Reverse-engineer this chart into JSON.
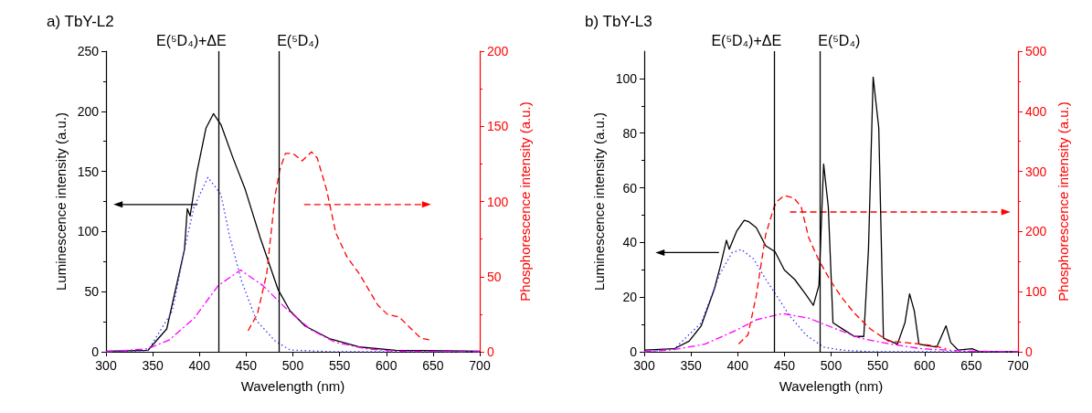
{
  "chart_data": [
    {
      "type": "line",
      "title": "a) TbY-L2",
      "xlabel": "Wavelength (nm)",
      "ylabel": "Luminescence intensity (a.u.)",
      "y2label": "Phosphorescence intensity (a.u.)",
      "xlim": [
        300,
        700
      ],
      "xticks": [
        300,
        350,
        400,
        450,
        500,
        550,
        600,
        650,
        700
      ],
      "ylim": [
        0,
        250
      ],
      "yticks": [
        0,
        50,
        100,
        150,
        200,
        250
      ],
      "y2lim": [
        0,
        200
      ],
      "y2ticks": [
        0,
        50,
        100,
        150,
        200
      ],
      "grid": false,
      "marker": "none",
      "ref_lines": [
        {
          "axis": "x",
          "value": 421,
          "label": "E(⁵D₄)+ΔE",
          "color": "#000000"
        },
        {
          "axis": "x",
          "value": 485,
          "label": "E(⁵D₄)",
          "color": "#000000"
        }
      ],
      "series": [
        {
          "color": "#000000",
          "line_style": "solid",
          "x": [
            300,
            345,
            365,
            384,
            387,
            390,
            397,
            407,
            415,
            423,
            436,
            449,
            465,
            484,
            497,
            513,
            539,
            571,
            610,
            700
          ],
          "values": [
            0.5,
            1.3,
            19,
            85,
            119,
            113,
            148,
            186,
            198,
            189,
            161,
            135,
            95,
            52,
            34,
            21.5,
            11,
            4,
            1.3,
            0.5
          ]
        },
        {
          "color": "#3333ff",
          "line_style": "dotted",
          "x": [
            300,
            345,
            371,
            384,
            394,
            409,
            423,
            432,
            445,
            461,
            481,
            497,
            545,
            700
          ],
          "values": [
            0,
            1,
            34,
            85,
            120,
            145,
            131,
            97,
            59,
            26,
            9,
            1.5,
            0,
            0
          ]
        },
        {
          "color": "#ff00ff",
          "line_style": "dashdot",
          "x": [
            300,
            345,
            368,
            394,
            420,
            444,
            468,
            494,
            520,
            545,
            578,
            610,
            700
          ],
          "values": [
            0,
            2.5,
            10,
            27.6,
            55,
            68,
            55,
            35,
            18,
            8,
            2.5,
            0.5,
            0
          ]
        },
        {
          "color": "#ff0000",
          "line_style": "dashed",
          "axis": "y2",
          "x": [
            452,
            462,
            472,
            481,
            486,
            492,
            500,
            510,
            520,
            526,
            536,
            546,
            558,
            571,
            591,
            601,
            614,
            627,
            637,
            646
          ],
          "values": [
            14,
            25,
            52,
            104,
            121,
            132,
            132,
            127,
            133,
            129,
            108,
            79,
            63,
            52,
            31,
            25,
            23,
            15,
            9,
            8
          ]
        }
      ]
    },
    {
      "type": "line",
      "title": "b) TbY-L3",
      "xlabel": "Wavelength (nm)",
      "ylabel": "Luminescence intensity (a.u.)",
      "y2label": "Phosphorescence intensity (a.u.)",
      "xlim": [
        300,
        700
      ],
      "xticks": [
        300,
        350,
        400,
        450,
        500,
        550,
        600,
        650,
        700
      ],
      "ylim": [
        0,
        110
      ],
      "yticks": [
        0,
        20,
        40,
        60,
        80,
        100
      ],
      "y2lim": [
        0,
        500
      ],
      "y2ticks": [
        0,
        100,
        200,
        300,
        400,
        500
      ],
      "grid": false,
      "marker": "none",
      "ref_lines": [
        {
          "axis": "x",
          "value": 439,
          "label": "E(⁵D₄)+ΔE",
          "color": "#000000"
        },
        {
          "axis": "x",
          "value": 488,
          "label": "E(⁵D₄)",
          "color": "#000000"
        }
      ],
      "series": [
        {
          "color": "#000000",
          "line_style": "solid",
          "x": [
            300,
            332,
            348,
            361,
            375,
            381,
            388,
            391,
            399,
            407,
            412,
            420,
            430,
            440,
            450,
            461,
            473,
            481,
            487,
            492,
            497,
            502,
            512,
            525,
            535,
            540,
            545,
            551,
            556,
            571,
            579,
            584,
            589,
            594,
            613,
            623,
            628,
            636,
            651,
            659,
            700
          ],
          "values": [
            0.6,
            1.1,
            3.9,
            9.5,
            22.9,
            30.7,
            40.8,
            37.5,
            44.2,
            48.1,
            47.6,
            45.4,
            38.8,
            36.6,
            29.9,
            26.5,
            20.9,
            17,
            24.3,
            68.7,
            53,
            10.6,
            8.4,
            5.6,
            5.6,
            37.5,
            100.5,
            82,
            5,
            2.8,
            10.6,
            21.2,
            15,
            2.8,
            1.7,
            9.5,
            3.4,
            0.6,
            1.1,
            0,
            0
          ]
        },
        {
          "color": "#3333ff",
          "line_style": "dotted",
          "x": [
            300,
            332,
            361,
            381,
            394,
            404,
            417,
            430,
            443,
            456,
            473,
            492,
            512,
            545,
            700
          ],
          "values": [
            0,
            1,
            10.6,
            28.5,
            36.3,
            37.4,
            34,
            26.5,
            19.8,
            13,
            6.2,
            1.7,
            0.6,
            0,
            0
          ]
        },
        {
          "color": "#ff00ff",
          "line_style": "dashdot",
          "x": [
            300,
            332,
            365,
            398,
            420,
            448,
            476,
            505,
            531,
            564,
            597,
            642,
            700
          ],
          "values": [
            0,
            0.8,
            2.8,
            7.8,
            11.7,
            14,
            12.3,
            8.4,
            5,
            2.8,
            1.1,
            0.3,
            0
          ]
        },
        {
          "color": "#ff0000",
          "line_style": "dashed",
          "axis": "y2",
          "x": [
            401,
            411,
            420,
            430,
            439,
            443,
            450,
            460,
            468,
            476,
            486,
            499,
            512,
            525,
            542,
            561,
            594,
            610,
            623
          ],
          "values": [
            13,
            28,
            94,
            195,
            241,
            251,
            260,
            256,
            241,
            190,
            155,
            119,
            89,
            64,
            38,
            18,
            13,
            10,
            5
          ]
        }
      ]
    }
  ]
}
